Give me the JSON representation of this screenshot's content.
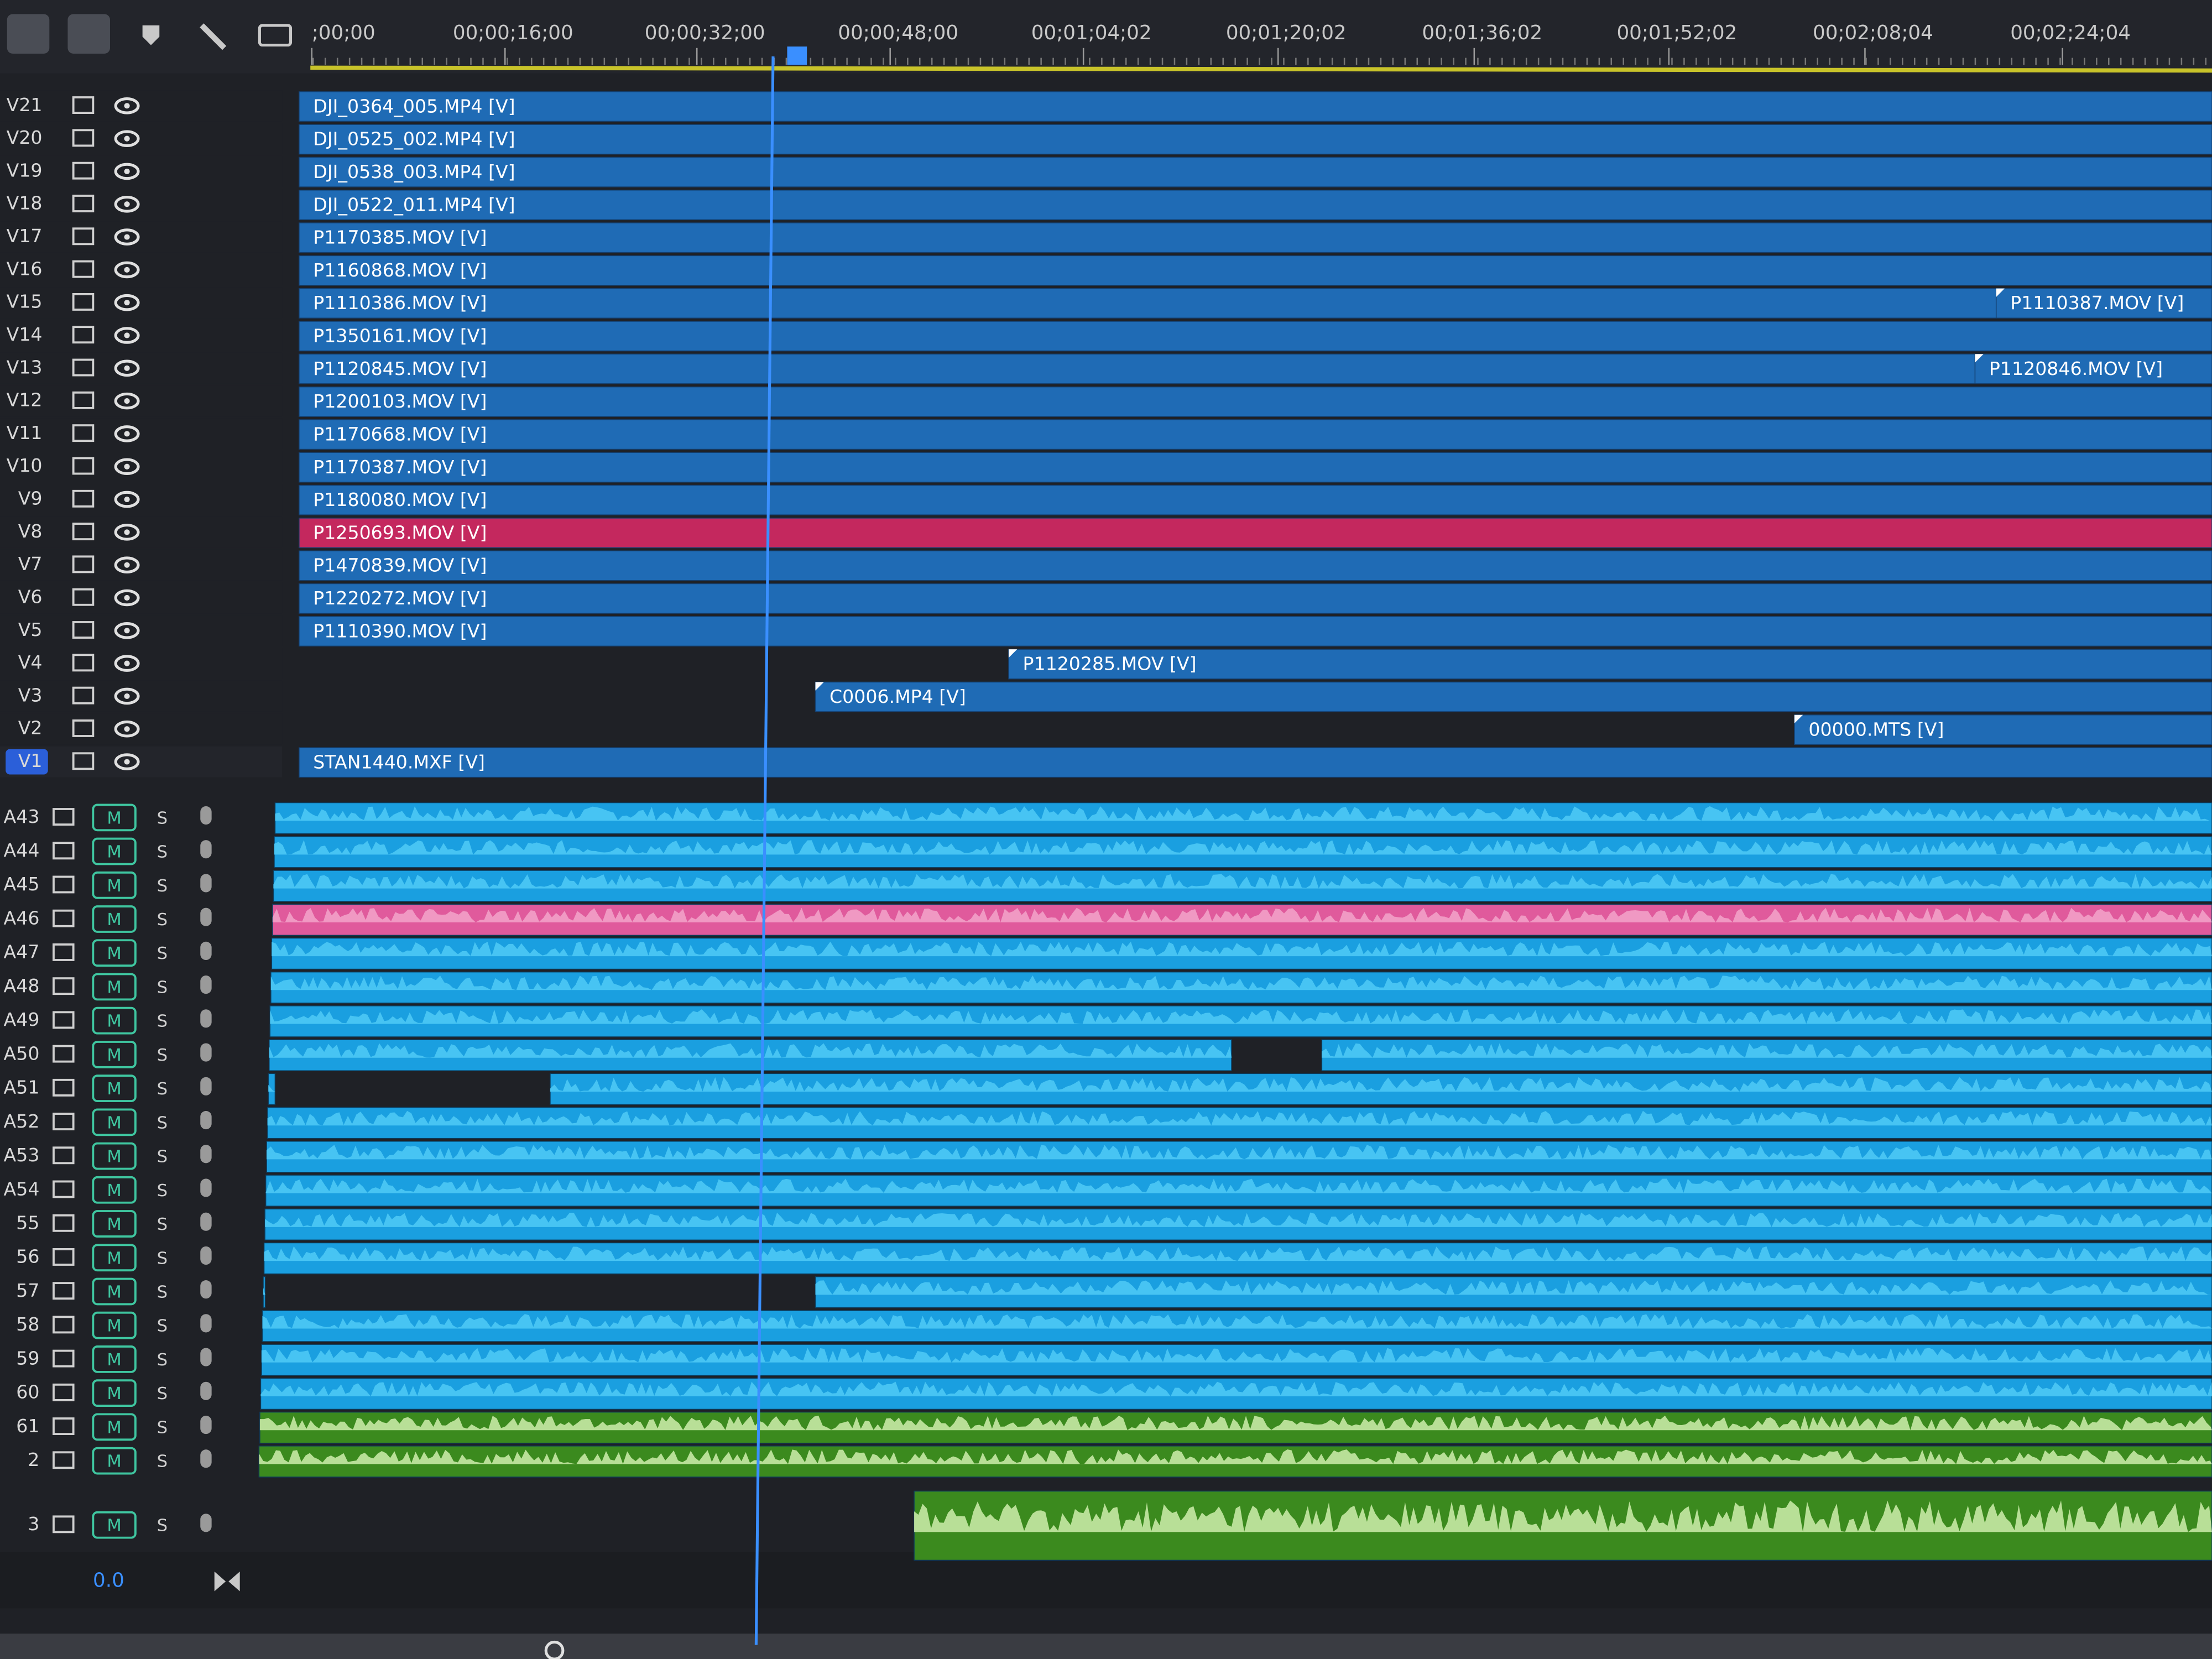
{
  "ruler": {
    "timecodes": [
      ";00;00",
      "00;00;16;00",
      "00;00;32;00",
      "00;00;48;00",
      "00;01;04;02",
      "00;01;20;02",
      "00;01;36;02",
      "00;01;52;02",
      "00;02;08;04",
      "00;02;24;04"
    ]
  },
  "video_tracks": [
    {
      "label": "V21",
      "clips": [
        "DJI_0364_005.MP4 [V]"
      ]
    },
    {
      "label": "V20",
      "clips": [
        "DJI_0525_002.MP4 [V]"
      ]
    },
    {
      "label": "V19",
      "clips": [
        "DJI_0538_003.MP4 [V]"
      ]
    },
    {
      "label": "V18",
      "clips": [
        "DJI_0522_011.MP4 [V]"
      ]
    },
    {
      "label": "V17",
      "clips": [
        "P1170385.MOV [V]"
      ]
    },
    {
      "label": "V16",
      "clips": [
        "P1160868.MOV [V]"
      ]
    },
    {
      "label": "V15",
      "clips": [
        "P1110386.MOV [V]",
        "P1110387.MOV [V]"
      ]
    },
    {
      "label": "V14",
      "clips": [
        "P1350161.MOV [V]"
      ]
    },
    {
      "label": "V13",
      "clips": [
        "P1120845.MOV [V]",
        "P1120846.MOV [V]"
      ]
    },
    {
      "label": "V12",
      "clips": [
        "P1200103.MOV [V]"
      ]
    },
    {
      "label": "V11",
      "clips": [
        "P1170668.MOV [V]"
      ]
    },
    {
      "label": "V10",
      "clips": [
        "P1170387.MOV [V]"
      ]
    },
    {
      "label": "V9",
      "clips": [
        "P1180080.MOV [V]"
      ]
    },
    {
      "label": "V8",
      "clips": [
        "P1250693.MOV [V]"
      ]
    },
    {
      "label": "V7",
      "clips": [
        "P1470839.MOV [V]"
      ]
    },
    {
      "label": "V6",
      "clips": [
        "P1220272.MOV [V]"
      ]
    },
    {
      "label": "V5",
      "clips": [
        "P1110390.MOV [V]"
      ]
    },
    {
      "label": "V4",
      "clips": [
        "P1120285.MOV [V]"
      ]
    },
    {
      "label": "V3",
      "clips": [
        "C0006.MP4 [V]"
      ]
    },
    {
      "label": "V2",
      "clips": [
        "00000.MTS [V]"
      ]
    },
    {
      "label": "V1",
      "clips": [
        "STAN1440.MXF [V]"
      ]
    }
  ],
  "audio_tracks": [
    {
      "label": "A43",
      "mute": "M",
      "solo": "S"
    },
    {
      "label": "A44",
      "mute": "M",
      "solo": "S"
    },
    {
      "label": "A45",
      "mute": "M",
      "solo": "S"
    },
    {
      "label": "A46",
      "mute": "M",
      "solo": "S"
    },
    {
      "label": "A47",
      "mute": "M",
      "solo": "S"
    },
    {
      "label": "A48",
      "mute": "M",
      "solo": "S"
    },
    {
      "label": "A49",
      "mute": "M",
      "solo": "S"
    },
    {
      "label": "A50",
      "mute": "M",
      "solo": "S"
    },
    {
      "label": "A51",
      "mute": "M",
      "solo": "S"
    },
    {
      "label": "A52",
      "mute": "M",
      "solo": "S"
    },
    {
      "label": "A53",
      "mute": "M",
      "solo": "S"
    },
    {
      "label": "A54",
      "mute": "M",
      "solo": "S"
    },
    {
      "label": "55",
      "mute": "M",
      "solo": "S"
    },
    {
      "label": "56",
      "mute": "M",
      "solo": "S"
    },
    {
      "label": "57",
      "mute": "M",
      "solo": "S"
    },
    {
      "label": "58",
      "mute": "M",
      "solo": "S"
    },
    {
      "label": "59",
      "mute": "M",
      "solo": "S"
    },
    {
      "label": "60",
      "mute": "M",
      "solo": "S"
    },
    {
      "label": "61",
      "mute": "M",
      "solo": "S"
    },
    {
      "label": "2",
      "mute": "M",
      "solo": "S"
    },
    {
      "label": "3",
      "mute": "M",
      "solo": "S"
    }
  ],
  "footer": {
    "volume": "0.0"
  }
}
